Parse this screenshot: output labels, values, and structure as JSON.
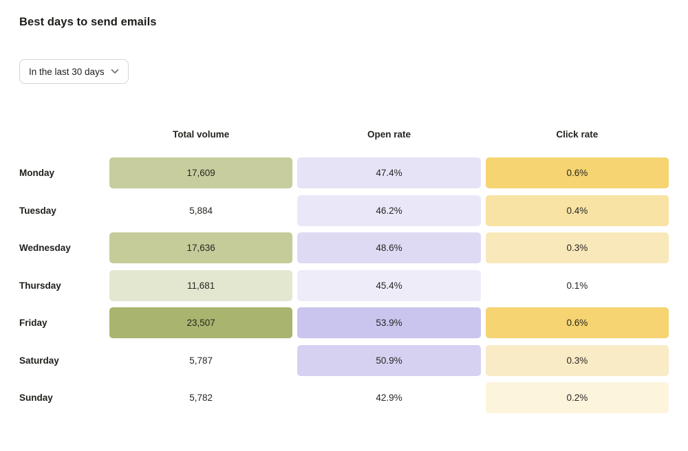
{
  "page": {
    "title": "Best days to send emails"
  },
  "filter": {
    "selected_option": "In the last 30 days",
    "chevron_icon": "chevron-down"
  },
  "table": {
    "columns": [
      "Total volume",
      "Open rate",
      "Click rate"
    ],
    "rows": [
      {
        "day": "Monday",
        "cells": [
          {
            "value": "17,609",
            "bg": "#c7cd9d"
          },
          {
            "value": "47.4%",
            "bg": "#e6e3f6"
          },
          {
            "value": "0.6%",
            "bg": "#f5d471"
          }
        ]
      },
      {
        "day": "Tuesday",
        "cells": [
          {
            "value": "5,884",
            "bg": "transparent"
          },
          {
            "value": "46.2%",
            "bg": "#eae8f8"
          },
          {
            "value": "0.4%",
            "bg": "#f8e3a4"
          }
        ]
      },
      {
        "day": "Wednesday",
        "cells": [
          {
            "value": "17,636",
            "bg": "#c5cb99"
          },
          {
            "value": "48.6%",
            "bg": "#dedaf4"
          },
          {
            "value": "0.3%",
            "bg": "#f9e8b9"
          }
        ]
      },
      {
        "day": "Thursday",
        "cells": [
          {
            "value": "11,681",
            "bg": "#e3e7d0"
          },
          {
            "value": "45.4%",
            "bg": "#eeecf9"
          },
          {
            "value": "0.1%",
            "bg": "transparent"
          }
        ]
      },
      {
        "day": "Friday",
        "cells": [
          {
            "value": "23,507",
            "bg": "#a9b46e"
          },
          {
            "value": "53.9%",
            "bg": "#c9c5ee"
          },
          {
            "value": "0.6%",
            "bg": "#f5d471"
          }
        ]
      },
      {
        "day": "Saturday",
        "cells": [
          {
            "value": "5,787",
            "bg": "transparent"
          },
          {
            "value": "50.9%",
            "bg": "#d6d1f1"
          },
          {
            "value": "0.3%",
            "bg": "#f9ebc6"
          }
        ]
      },
      {
        "day": "Sunday",
        "cells": [
          {
            "value": "5,782",
            "bg": "transparent"
          },
          {
            "value": "42.9%",
            "bg": "transparent"
          },
          {
            "value": "0.2%",
            "bg": "#fdf4dc"
          }
        ]
      }
    ]
  },
  "colors": {
    "heat_green_max": "#a9b46e",
    "heat_purple_max": "#c9c5ee",
    "heat_yellow_max": "#f5d471",
    "border": "#d7d5d1",
    "text": "#21201c"
  },
  "chart_data": {
    "type": "heatmap",
    "title": "Best days to send emails",
    "categories": [
      "Monday",
      "Tuesday",
      "Wednesday",
      "Thursday",
      "Friday",
      "Saturday",
      "Sunday"
    ],
    "series": [
      {
        "name": "Total volume",
        "values": [
          17609,
          5884,
          17636,
          11681,
          23507,
          5787,
          5782
        ],
        "unit": "count",
        "color_scale": "green"
      },
      {
        "name": "Open rate",
        "values": [
          47.4,
          46.2,
          48.6,
          45.4,
          53.9,
          50.9,
          42.9
        ],
        "unit": "%",
        "color_scale": "purple"
      },
      {
        "name": "Click rate",
        "values": [
          0.6,
          0.4,
          0.3,
          0.1,
          0.6,
          0.3,
          0.2
        ],
        "unit": "%",
        "color_scale": "yellow"
      }
    ],
    "legend": "none",
    "layout": "rows are days, columns are metrics; cell shading intensity is proportional to value within each column (minimum value unshaded)"
  }
}
